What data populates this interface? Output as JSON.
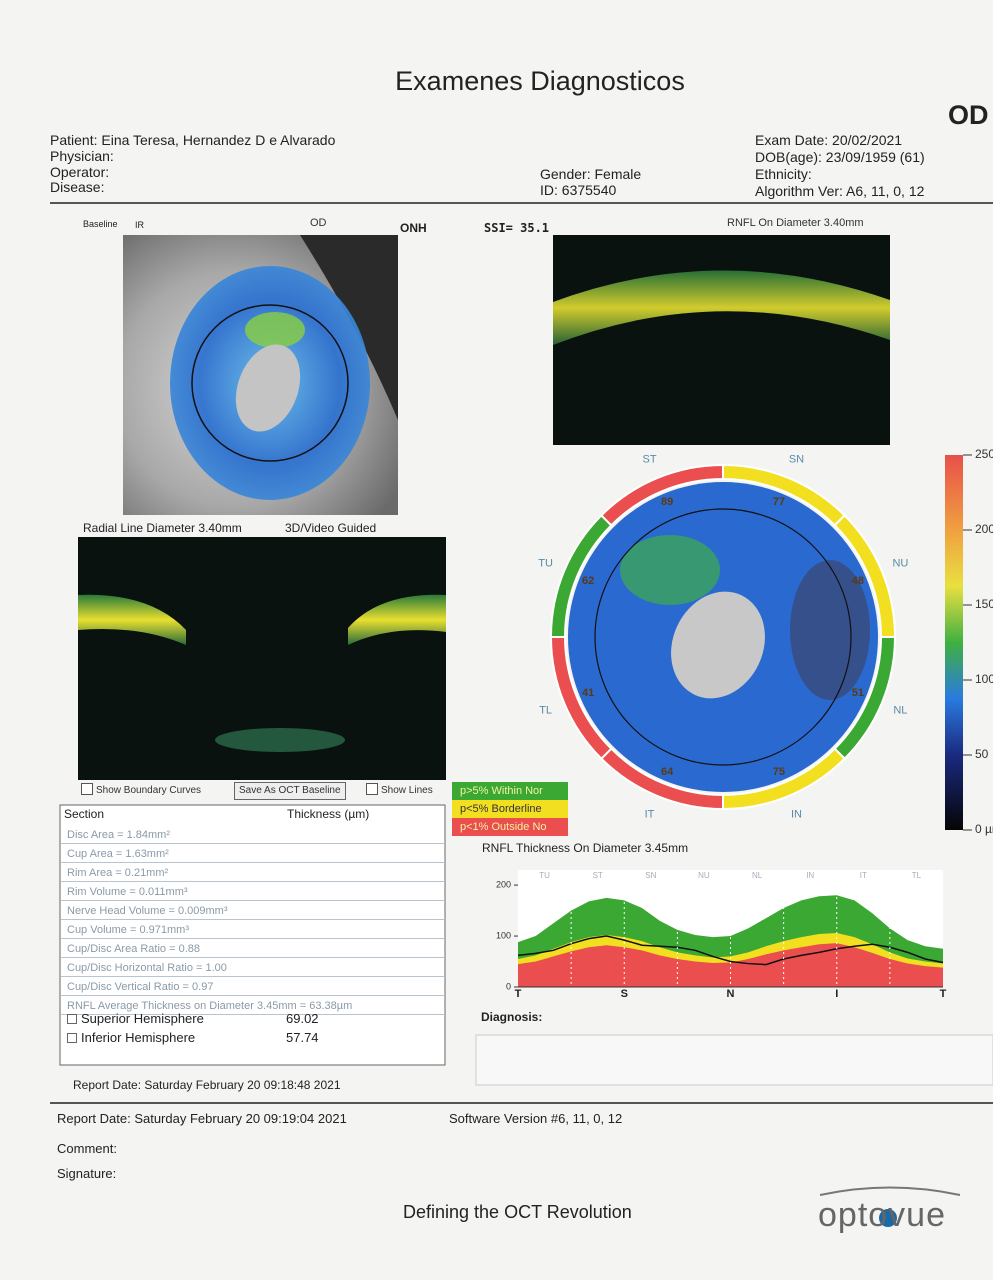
{
  "header": {
    "title": "Examenes Diagnosticos",
    "eye": "OD"
  },
  "patient": {
    "patient": "Patient: Eina Teresa, Hernandez D e Alvarado",
    "physician": "Physician:",
    "operator": "Operator:",
    "disease": "Disease:",
    "gender": "Gender: Female",
    "id": "ID: 6375540",
    "exam_date": "Exam Date: 20/02/2021",
    "dob": "DOB(age): 23/09/1959 (61)",
    "ethnicity": "Ethnicity:",
    "algorithm": "Algorithm Ver: A6, 11, 0, 12"
  },
  "onh_panel": {
    "baseline": "Baseline",
    "mode": "IR",
    "eye": "OD",
    "scan": "ONH"
  },
  "rnfl_panel": {
    "ssi": "SSI= 35.1",
    "title": "RNFL On Diameter 3.40mm"
  },
  "radial_panel": {
    "title": "Radial Line Diameter 3.40mm",
    "mode": "3D/Video Guided"
  },
  "controls": {
    "boundary": "Show Boundary Curves",
    "baseline": "Save As OCT Baseline",
    "lines": "Show Lines"
  },
  "legend": [
    {
      "label": "p>5% Within Nor",
      "color": "#3aa832"
    },
    {
      "label": "p<5% Borderline",
      "color": "#f2e020"
    },
    {
      "label": "p<1% Outside No",
      "color": "#ea4e4e"
    }
  ],
  "table": {
    "header": [
      "Section",
      "Thickness (µm)"
    ],
    "rows": [
      "Disc Area = 1.84mm²",
      "Cup Area = 1.63mm²",
      "Rim Area = 0.21mm²",
      "Rim Volume = 0.011mm³",
      "Nerve Head Volume = 0.009mm³",
      "Cup Volume = 0.971mm³",
      "Cup/Disc Area Ratio = 0.88",
      "Cup/Disc Horizontal Ratio = 1.00",
      "Cup/Disc Vertical Ratio = 0.97",
      "RNFL Average Thickness on Diameter 3.45mm = 63.38µm"
    ],
    "hemispheres": [
      {
        "name": "Superior Hemisphere",
        "value": "69.02"
      },
      {
        "name": "Inferior Hemisphere",
        "value": "57.74"
      }
    ]
  },
  "sectors": [
    {
      "label": "SN",
      "value": 77,
      "color": "#f2e020"
    },
    {
      "label": "NU",
      "value": 48,
      "color": "#f2e020"
    },
    {
      "label": "NL",
      "value": 51,
      "color": "#3aa832"
    },
    {
      "label": "IN",
      "value": 75,
      "color": "#f2e020"
    },
    {
      "label": "IT",
      "value": 64,
      "color": "#ea4e4e"
    },
    {
      "label": "TL",
      "value": 41,
      "color": "#ea4e4e"
    },
    {
      "label": "TU",
      "value": 62,
      "color": "#3aa832"
    },
    {
      "label": "ST",
      "value": 89,
      "color": "#ea4e4e"
    }
  ],
  "color_scale": {
    "ticks": [
      250,
      200,
      150,
      100,
      50,
      0
    ],
    "unit": "µm",
    "lim": [
      0,
      250
    ]
  },
  "tsnit": {
    "title": "RNFL Thickness On Diameter 3.45mm",
    "ylim": [
      0,
      210
    ],
    "yticks": [
      0,
      100,
      200
    ],
    "bottom_labels": [
      "T",
      "S",
      "N",
      "I",
      "T"
    ],
    "top_labels": [
      "TU",
      "ST",
      "SN",
      "NU",
      "NL",
      "IN",
      "IT",
      "TL"
    ],
    "within_top": [
      88,
      100,
      125,
      150,
      168,
      175,
      170,
      155,
      130,
      112,
      102,
      98,
      100,
      115,
      135,
      155,
      170,
      178,
      180,
      170,
      145,
      115,
      92,
      80,
      75
    ],
    "borderline_top": [
      55,
      62,
      75,
      88,
      98,
      102,
      98,
      90,
      78,
      68,
      62,
      58,
      60,
      68,
      80,
      90,
      98,
      104,
      106,
      98,
      84,
      68,
      56,
      50,
      46
    ],
    "outside_top": [
      45,
      50,
      60,
      70,
      78,
      82,
      78,
      72,
      62,
      55,
      50,
      47,
      48,
      55,
      64,
      72,
      78,
      84,
      86,
      78,
      67,
      55,
      46,
      41,
      38
    ],
    "values": [
      62,
      66,
      72,
      85,
      95,
      100,
      92,
      82,
      80,
      78,
      72,
      60,
      50,
      46,
      44,
      55,
      62,
      68,
      75,
      80,
      84,
      78,
      68,
      55,
      48
    ],
    "line_color": "#111111"
  },
  "diagnosis": "Diagnosis:",
  "report_date_1": "Report Date: Saturday February 20 09:18:48 2021",
  "footer": {
    "report_date": "Report Date: Saturday February 20 09:19:04 2021",
    "software": "Software Version #6, 11, 0, 12",
    "comment": "Comment:",
    "signature": "Signature:",
    "tagline": "Defining the OCT Revolution",
    "brand": "optovue"
  }
}
